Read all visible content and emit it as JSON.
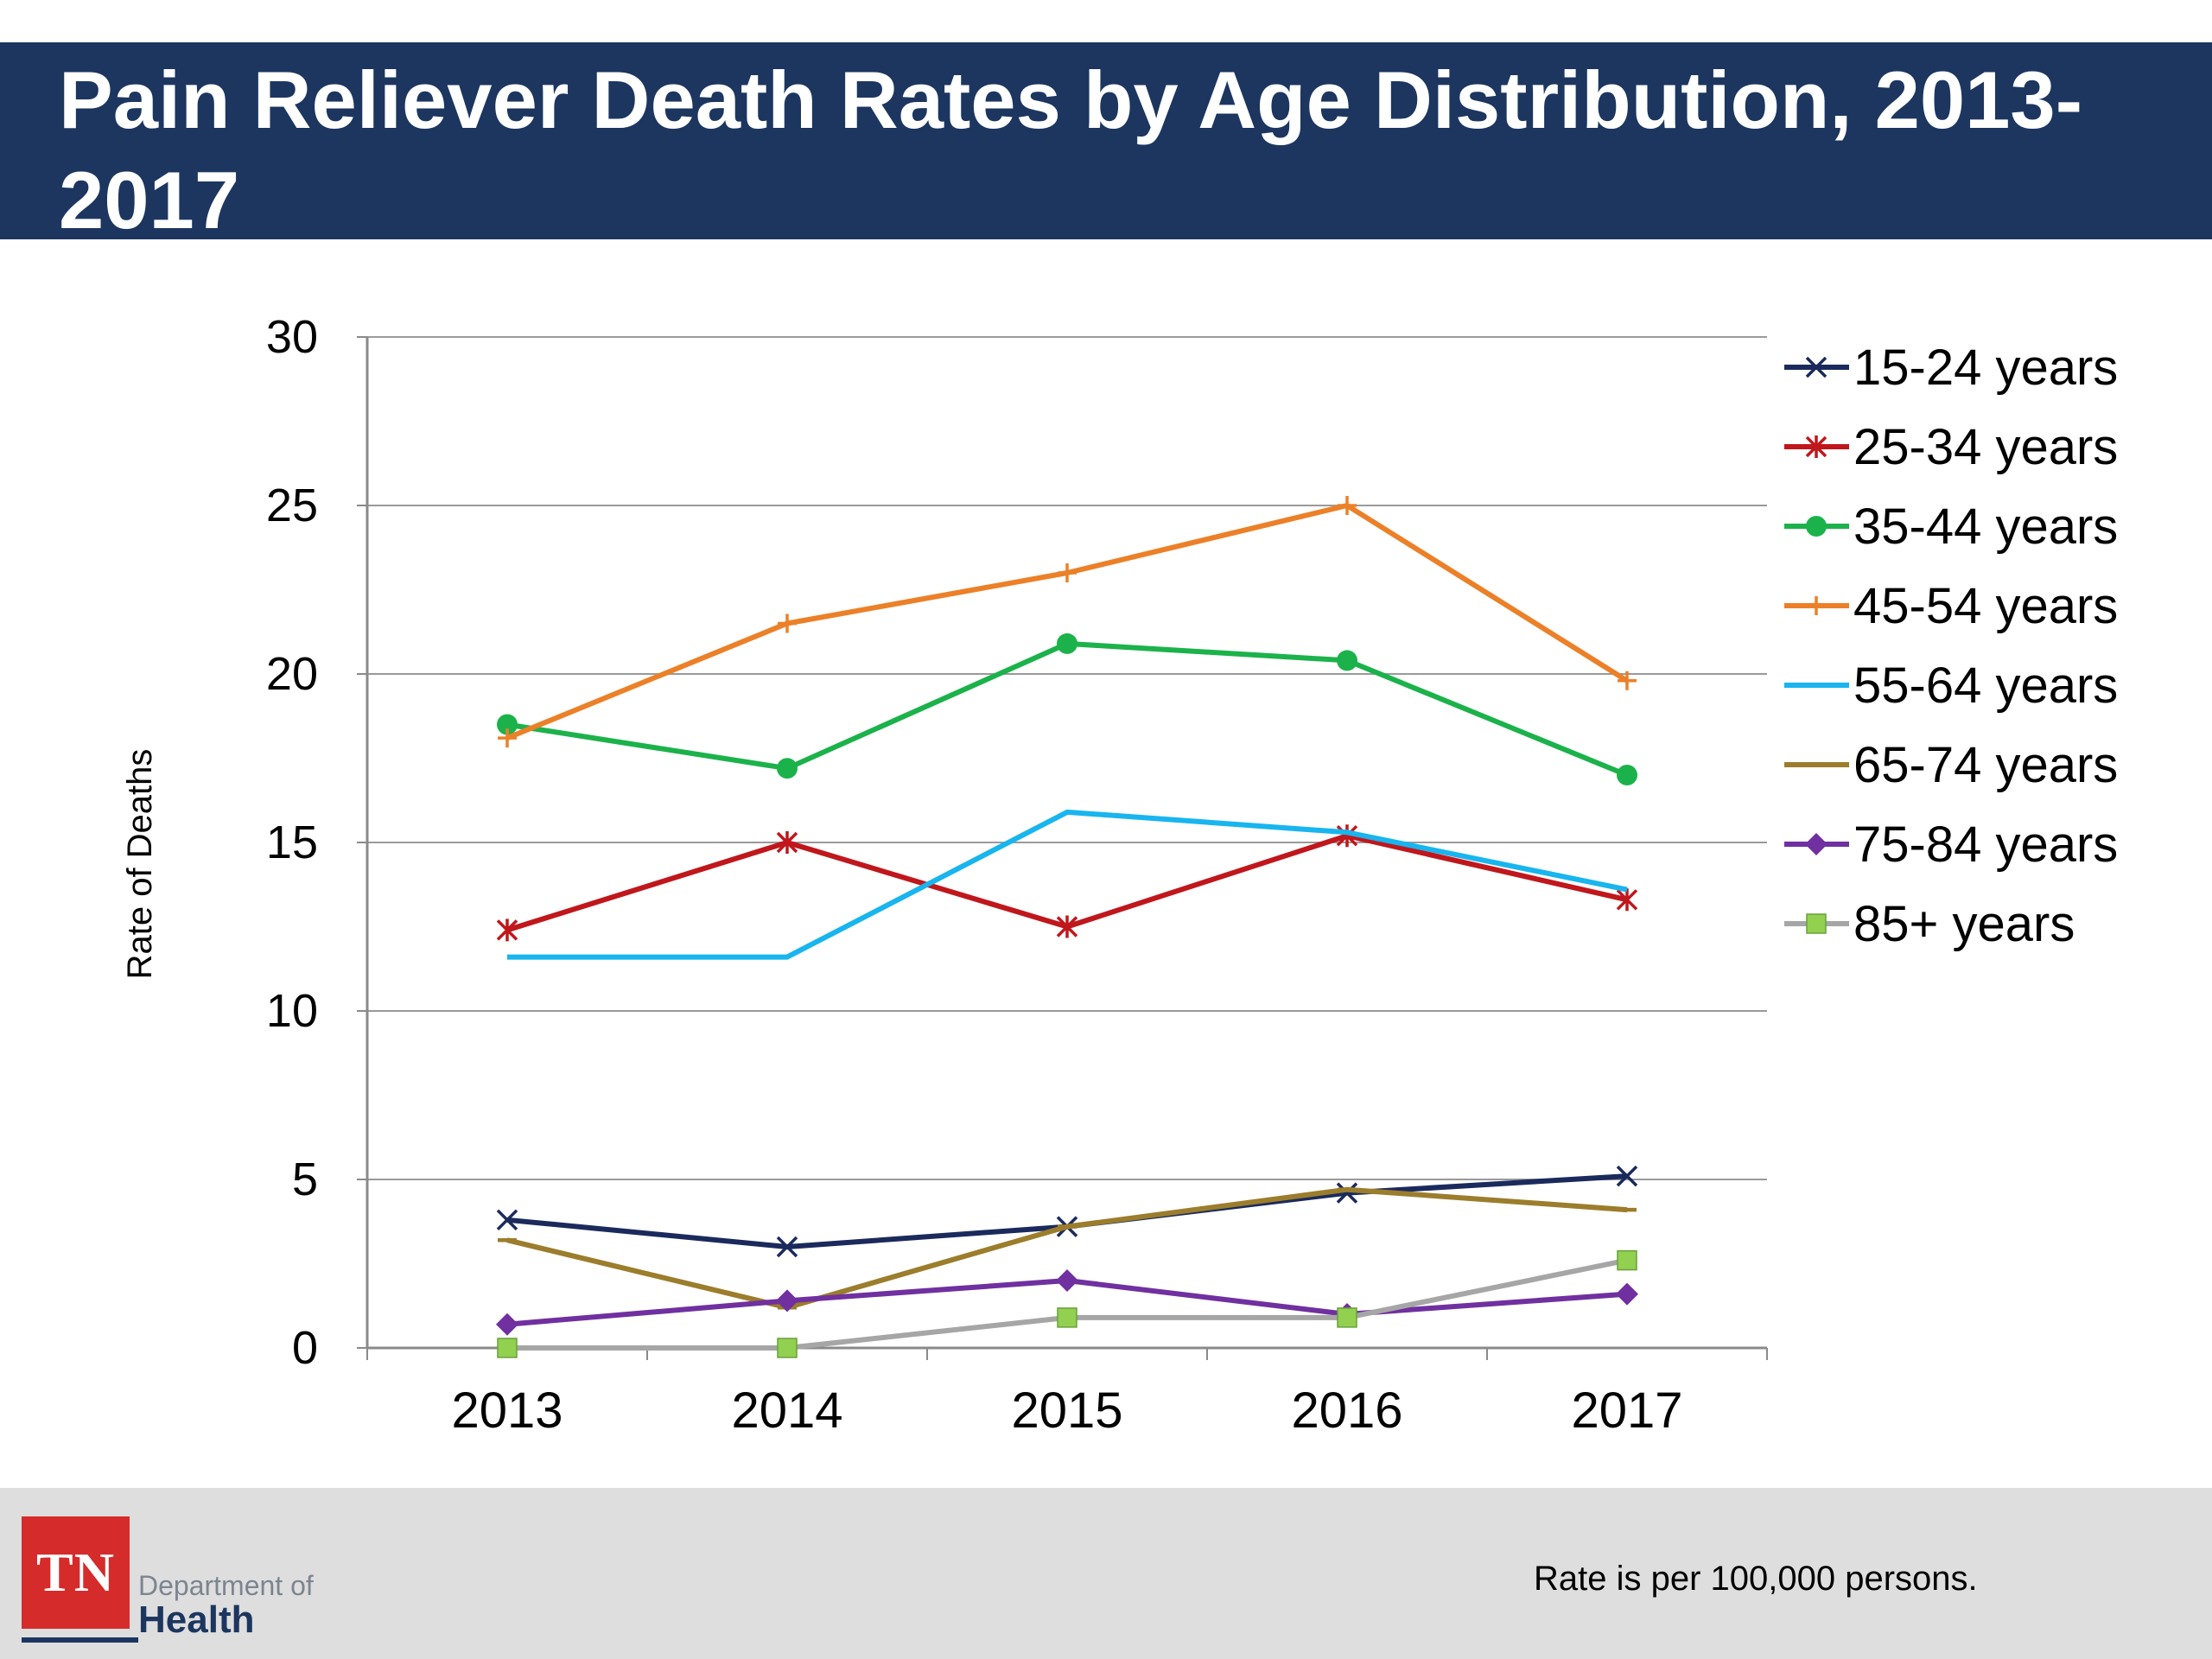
{
  "slide": {
    "title": "Pain Reliever Death Rates by Age Distribution, 2013-2017",
    "footnote": "Rate is per 100,000 persons.",
    "logo": {
      "mark": "TN",
      "line1": "Department of",
      "line2": "Health"
    }
  },
  "colors": {
    "title_bg": "#1c3660",
    "footer_bg": "#dedede",
    "logo_red": "#d52b2b"
  },
  "chart_data": {
    "type": "line",
    "title": "",
    "xlabel": "",
    "ylabel": "Rate of Deaths",
    "categories": [
      "2013",
      "2014",
      "2015",
      "2016",
      "2017"
    ],
    "ylim": [
      0,
      30
    ],
    "yticks": [
      0,
      5,
      10,
      15,
      20,
      25,
      30
    ],
    "grid": true,
    "legend_position": "right",
    "series": [
      {
        "name": "15-24 years",
        "color": "#1b2a5c",
        "marker": "x",
        "values": [
          3.8,
          3.0,
          3.6,
          4.6,
          5.1
        ]
      },
      {
        "name": "25-34 years",
        "color": "#c0171c",
        "marker": "asterisk",
        "values": [
          12.4,
          15.0,
          12.5,
          15.2,
          13.3
        ]
      },
      {
        "name": "35-44 years",
        "color": "#1cb24b",
        "marker": "circle",
        "values": [
          18.5,
          17.2,
          20.9,
          20.4,
          17.0
        ]
      },
      {
        "name": "45-54 years",
        "color": "#ec8028",
        "marker": "plus",
        "values": [
          18.1,
          21.5,
          23.0,
          25.0,
          19.8
        ]
      },
      {
        "name": "55-64 years",
        "color": "#18b5ee",
        "marker": "none",
        "values": [
          11.6,
          11.6,
          15.9,
          15.3,
          13.6
        ]
      },
      {
        "name": "65-74 years",
        "color": "#9b7d2c",
        "marker": "dash",
        "values": [
          3.2,
          1.2,
          3.6,
          4.7,
          4.1
        ]
      },
      {
        "name": "75-84 years",
        "color": "#7030a0",
        "marker": "diamond",
        "values": [
          0.7,
          1.4,
          2.0,
          1.0,
          1.6
        ]
      },
      {
        "name": "85+ years",
        "color": "#a6a6a6",
        "marker_color": "#92d050",
        "marker": "square",
        "values": [
          0.0,
          0.0,
          0.9,
          0.9,
          2.6
        ]
      }
    ]
  }
}
